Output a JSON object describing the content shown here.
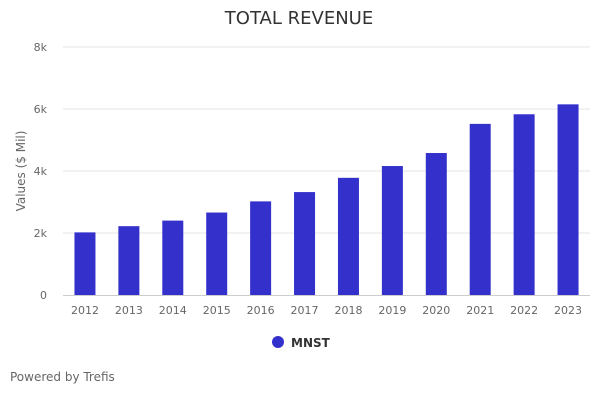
{
  "chart_data": {
    "type": "bar",
    "title": "TOTAL REVENUE",
    "ylabel": "Values ($ Mil)",
    "xlabel": "",
    "categories": [
      "2012",
      "2013",
      "2014",
      "2015",
      "2016",
      "2017",
      "2018",
      "2019",
      "2020",
      "2021",
      "2022",
      "2023"
    ],
    "series": [
      {
        "name": "MNST",
        "values": [
          2020,
          2220,
          2400,
          2660,
          3020,
          3320,
          3780,
          4160,
          4580,
          5520,
          5830,
          6150
        ]
      }
    ],
    "ylim": [
      0,
      8000
    ],
    "yticks": [
      0,
      2000,
      4000,
      6000,
      8000
    ],
    "ytick_labels": [
      "0",
      "2k",
      "4k",
      "6k",
      "8k"
    ],
    "grid": true,
    "legend_position": "bottom-center",
    "colors": {
      "bar": "#3330cc",
      "grid": "#e6e6e6",
      "axis": "#cccccc",
      "text": "#333333",
      "tick_text": "#666666"
    }
  },
  "footer": {
    "text": "Powered by Trefis"
  }
}
